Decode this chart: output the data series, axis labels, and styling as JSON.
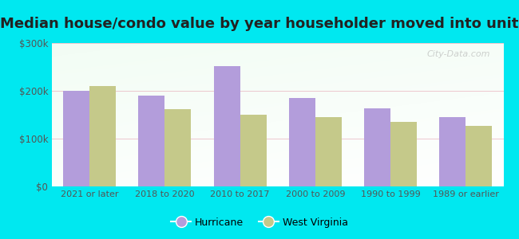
{
  "title": "Median house/condo value by year householder moved into unit",
  "categories": [
    "2021 or later",
    "2018 to 2020",
    "2010 to 2017",
    "2000 to 2009",
    "1990 to 1999",
    "1989 or earlier"
  ],
  "hurricane_values": [
    200000,
    190000,
    252000,
    185000,
    163000,
    145000
  ],
  "wv_values": [
    210000,
    162000,
    150000,
    145000,
    135000,
    126000
  ],
  "hurricane_color": "#b39ddb",
  "wv_color": "#c5c98a",
  "background_outer": "#00e8f0",
  "ylim": [
    0,
    300000
  ],
  "yticks": [
    0,
    100000,
    200000,
    300000
  ],
  "ytick_labels": [
    "$0",
    "$100k",
    "$200k",
    "$300k"
  ],
  "grid_color": "#e8b0bc",
  "legend_hurricane": "Hurricane",
  "legend_wv": "West Virginia",
  "bar_width": 0.35,
  "watermark": "City-Data.com",
  "title_fontsize": 13,
  "title_color": "#222222"
}
